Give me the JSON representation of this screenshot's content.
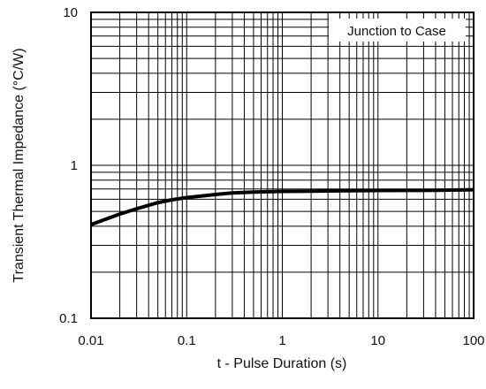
{
  "chart_data": {
    "type": "line",
    "title": "",
    "xlabel": "t - Pulse Duration (s)",
    "ylabel": "Transient Thermal Impedance (°C/W)",
    "xscale": "log",
    "yscale": "log",
    "xlim": [
      0.01,
      100
    ],
    "ylim": [
      0.1,
      10
    ],
    "x_ticks": [
      0.01,
      0.1,
      1,
      10,
      100
    ],
    "x_tick_labels": [
      "0.01",
      "0.1",
      "1",
      "10",
      "100"
    ],
    "y_ticks": [
      0.1,
      1,
      10
    ],
    "y_tick_labels": [
      "0.1",
      "1",
      "10"
    ],
    "grid": true,
    "legend": {
      "placement": "top-right"
    },
    "series": [
      {
        "name": "Junction to Case",
        "color": "#000000",
        "x": [
          0.01,
          0.02,
          0.03,
          0.05,
          0.07,
          0.1,
          0.2,
          0.3,
          0.5,
          0.7,
          1,
          2,
          3,
          5,
          7,
          10,
          20,
          30,
          50,
          70,
          100
        ],
        "y": [
          0.41,
          0.48,
          0.52,
          0.57,
          0.595,
          0.615,
          0.645,
          0.66,
          0.668,
          0.672,
          0.675,
          0.678,
          0.68,
          0.682,
          0.683,
          0.684,
          0.685,
          0.686,
          0.688,
          0.69,
          0.692
        ]
      }
    ]
  }
}
